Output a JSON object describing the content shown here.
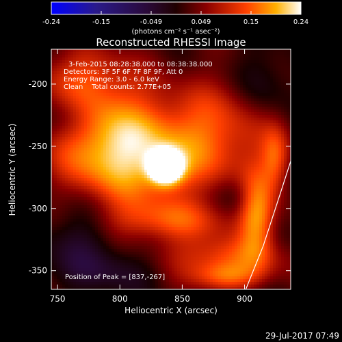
{
  "chart_data": {
    "type": "heatmap",
    "title": "Reconstructed RHESSI Image",
    "xlabel": "Heliocentric X (arcsec)",
    "ylabel": "Heliocentric Y (arcsec)",
    "xlim": [
      745,
      937
    ],
    "ylim": [
      -365,
      -172
    ],
    "x_ticks": [
      750,
      800,
      850,
      900
    ],
    "y_ticks": [
      -200,
      -250,
      -300,
      -350
    ],
    "colorbar": {
      "ticks": [
        "-0.24",
        "-0.15",
        "-0.049",
        "0.049",
        "0.15",
        "0.24"
      ],
      "range": [
        -0.24,
        0.24
      ],
      "unit_label": "(photons cm⁻² s⁻¹ asec⁻²)"
    },
    "annotations": [
      "3-Feb-2015 08:28:38.000 to 08:38:38.000",
      "Detectors: 3F 5F 6F 7F 8F 9F, Att 0",
      "Energy Range: 3.0 - 6.0 keV",
      "Clean    Total counts: 2.77E+05"
    ],
    "peak_label": "Position of Peak = [837,-267]",
    "peak": {
      "x": 837,
      "y": -267,
      "value": 0.24
    },
    "blobs": [
      {
        "x": 837,
        "y": -267,
        "sx": 9,
        "sy": 9,
        "a": 0.3
      },
      {
        "x": 820,
        "y": -255,
        "sx": 38,
        "sy": 30,
        "a": 0.13
      },
      {
        "x": 785,
        "y": -250,
        "sx": 30,
        "sy": 35,
        "a": 0.11
      },
      {
        "x": 770,
        "y": -195,
        "sx": 28,
        "sy": 18,
        "a": 0.08
      },
      {
        "x": 880,
        "y": -240,
        "sx": 30,
        "sy": 30,
        "a": 0.09
      },
      {
        "x": 840,
        "y": -310,
        "sx": 40,
        "sy": 12,
        "a": 0.09
      },
      {
        "x": 880,
        "y": -340,
        "sx": 35,
        "sy": 12,
        "a": 0.1
      },
      {
        "x": 910,
        "y": -305,
        "sx": 10,
        "sy": 25,
        "a": 0.14
      },
      {
        "x": 925,
        "y": -260,
        "sx": 8,
        "sy": 18,
        "a": 0.1
      },
      {
        "x": 885,
        "y": -355,
        "sx": 20,
        "sy": 8,
        "a": 0.1
      },
      {
        "x": 770,
        "y": -320,
        "sx": 22,
        "sy": 25,
        "a": -0.07
      },
      {
        "x": 800,
        "y": -350,
        "sx": 30,
        "sy": 12,
        "a": -0.05
      },
      {
        "x": 760,
        "y": -225,
        "sx": 15,
        "sy": 15,
        "a": -0.05
      },
      {
        "x": 915,
        "y": -200,
        "sx": 15,
        "sy": 22,
        "a": -0.05
      },
      {
        "x": 895,
        "y": -290,
        "sx": 12,
        "sy": 12,
        "a": -0.04
      }
    ],
    "limb": [
      [
        901,
        -365
      ],
      [
        915,
        -330
      ],
      [
        928,
        -290
      ],
      [
        937,
        -262
      ]
    ]
  },
  "footer": {
    "date": "29-Jul-2017 07:49"
  },
  "colors": {
    "foreground": "#ffffff",
    "background": "#000000"
  }
}
